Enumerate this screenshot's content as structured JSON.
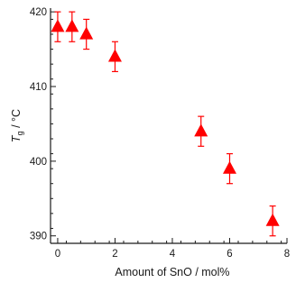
{
  "chart_data": {
    "type": "scatter",
    "title": "",
    "xlabel": "Amount of SnO / mol%",
    "ylabel": {
      "main": "T",
      "sub": "g",
      "unit": " / °C"
    },
    "xlim": [
      -0.25,
      8
    ],
    "ylim": [
      389,
      420.5
    ],
    "xticks": [
      0,
      2,
      4,
      6,
      8
    ],
    "yticks": [
      390,
      400,
      410,
      420
    ],
    "grid": false,
    "marker": "triangle",
    "color": "#ff0000",
    "axis_color": "#1a1a1a",
    "series": [
      {
        "points": [
          {
            "x": 0,
            "y": 418,
            "err": 2
          },
          {
            "x": 0.5,
            "y": 418,
            "err": 2
          },
          {
            "x": 1,
            "y": 417,
            "err": 2
          },
          {
            "x": 2,
            "y": 414,
            "err": 2
          },
          {
            "x": 5,
            "y": 404,
            "err": 2
          },
          {
            "x": 6,
            "y": 399,
            "err": 2
          },
          {
            "x": 7.5,
            "y": 392,
            "err": 2
          }
        ]
      }
    ]
  }
}
